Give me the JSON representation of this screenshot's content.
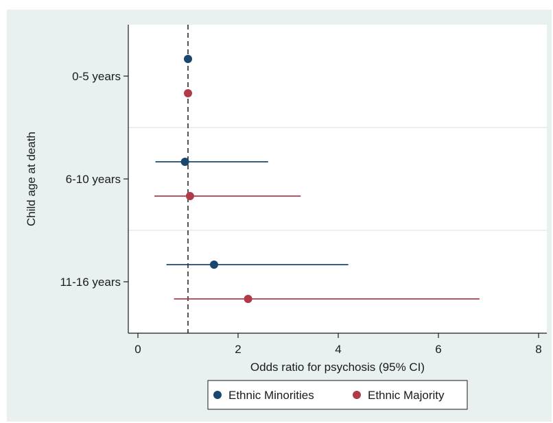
{
  "chart_data": {
    "type": "scatter",
    "subtype": "forest-plot",
    "title": "",
    "xlabel": "Odds ratio for psychosis (95% CI)",
    "ylabel": "Child age at death",
    "xlim": [
      -0.2,
      8.3
    ],
    "x_ticks": [
      0,
      2,
      4,
      6,
      8
    ],
    "x_tick_labels": [
      "0",
      "2",
      "4",
      "6",
      "8"
    ],
    "reference_line": 1,
    "categories": [
      "0-5 years",
      "6-10 years",
      "11-16 years"
    ],
    "series": [
      {
        "name": "Ethnic Minorities",
        "color": "#1a476f",
        "points": [
          {
            "category": "0-5 years",
            "or": 1.0,
            "lower": null,
            "upper": null
          },
          {
            "category": "6-10 years",
            "or": 0.94,
            "lower": 0.35,
            "upper": 2.6
          },
          {
            "category": "11-16 years",
            "or": 1.52,
            "lower": 0.57,
            "upper": 4.2
          }
        ]
      },
      {
        "name": "Ethnic Majority",
        "color": "#b03a48",
        "points": [
          {
            "category": "0-5 years",
            "or": 1.0,
            "lower": null,
            "upper": null
          },
          {
            "category": "6-10 years",
            "or": 1.04,
            "lower": 0.33,
            "upper": 3.25
          },
          {
            "category": "11-16 years",
            "or": 2.2,
            "lower": 0.72,
            "upper": 6.82
          }
        ]
      }
    ],
    "grid": true,
    "legend": {
      "position": "bottom",
      "entries": [
        "Ethnic Minorities",
        "Ethnic Majority"
      ]
    },
    "colors": {
      "outer_background": "#e8f0f0",
      "plot_background": "#ffffff",
      "grid": "#e3eaea",
      "axis": "#1a1a1a"
    }
  }
}
